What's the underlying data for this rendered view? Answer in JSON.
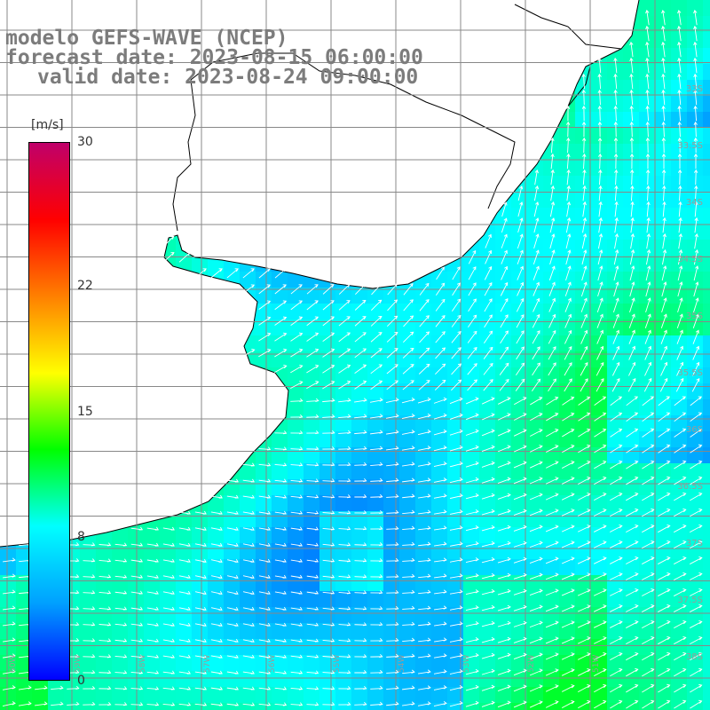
{
  "title": {
    "line1": "modelo GEFS-WAVE (NCEP)",
    "line2": "forecast date: 2023-08-15 06:00:00",
    "line3": "valid date: 2023-08-24 09:00:00"
  },
  "colorbar": {
    "unit": "[m/s]",
    "ticks": [
      "30",
      "22",
      "15",
      "8",
      "0"
    ],
    "tick_values": [
      30,
      22,
      15,
      8,
      0
    ],
    "range": [
      0,
      30
    ],
    "colors": [
      "#0000ff",
      "#00a0ff",
      "#00ffff",
      "#00ff00",
      "#ffff00",
      "#ff8000",
      "#ff0000",
      "#c0006a"
    ]
  },
  "map": {
    "variable": "wind speed and direction",
    "lon_labels": [
      "60W",
      "59W",
      "58W",
      "57W",
      "56W",
      "55W",
      "54W",
      "53W",
      "52W",
      "51W"
    ],
    "lat_labels": [
      "33S",
      "33.5S",
      "34S",
      "34.5S",
      "35S",
      "35.5S",
      "36S",
      "36.5S",
      "37S",
      "37.5S",
      "38S",
      "38.5S"
    ],
    "land_color": "#ffffff",
    "grid_color": "#888888",
    "arrow_color": "#ffffff",
    "coast_color": "#000000"
  }
}
